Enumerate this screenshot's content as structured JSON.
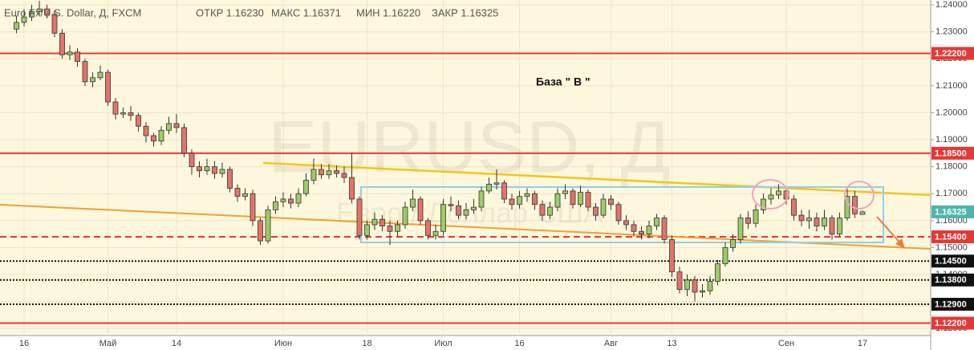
{
  "chart_data": {
    "type": "candlestick",
    "title": "Euro Fx/U.S. Dollar, Д, FXCM",
    "header": [
      "ОТКР 1.16230",
      "МАКС 1.16371",
      "МИН 1.16220",
      "ЗАКР 1.16325"
    ],
    "annotation": "База  \" В \"",
    "watermark": "EURUSD, Д",
    "watermark_subtitle": "Евро / Доллар США",
    "up_color": "#9ccc65",
    "down_color": "#e57368",
    "ylim": [
      1.1174,
      1.2418
    ],
    "yticks": [
      {
        "value": 1.24,
        "label": "1.24000"
      },
      {
        "value": 1.23,
        "label": "1.23000"
      },
      {
        "value": 1.22,
        "label": "1.22000"
      },
      {
        "value": 1.21,
        "label": "1.21000"
      },
      {
        "value": 1.2,
        "label": "1.20000"
      },
      {
        "value": 1.19,
        "label": "1.19000"
      },
      {
        "value": 1.18,
        "label": "1.18000"
      },
      {
        "value": 1.17,
        "label": "1.17000"
      },
      {
        "value": 1.16,
        "label": "1.16000"
      },
      {
        "value": 1.15,
        "label": "1.15000"
      },
      {
        "value": 1.14,
        "label": "1.14000"
      },
      {
        "value": 1.13,
        "label": "1.13000"
      },
      {
        "value": 1.12,
        "label": "1.12000"
      }
    ],
    "grid": true,
    "levels": [
      {
        "value": 1.222,
        "label": "1.22200",
        "color": "#e53935",
        "style": "solid"
      },
      {
        "value": 1.185,
        "label": "1.18500",
        "color": "#e53935",
        "style": "solid"
      },
      {
        "value": 1.154,
        "label": "1.15400",
        "color": "#e53935",
        "style": "dashed"
      },
      {
        "value": 1.145,
        "label": "1.14500",
        "color": "#111111",
        "style": "dotted"
      },
      {
        "value": 1.138,
        "label": "1.13800",
        "color": "#111111",
        "style": "dotted"
      },
      {
        "value": 1.129,
        "label": "1.12900",
        "color": "#111111",
        "style": "dotted"
      },
      {
        "value": 1.122,
        "label": "1.12200",
        "color": "#e53935",
        "style": "solid"
      }
    ],
    "last_price": {
      "value": 1.16325,
      "label": "1.16325",
      "color": "#4db6ac"
    },
    "categories": [
      null,
      "16",
      null,
      null,
      null,
      null,
      null,
      null,
      null,
      null,
      null,
      null,
      "Май",
      null,
      null,
      null,
      null,
      null,
      null,
      null,
      null,
      "14",
      null,
      null,
      null,
      null,
      null,
      null,
      null,
      null,
      null,
      null,
      null,
      null,
      null,
      "Июн",
      null,
      null,
      null,
      null,
      null,
      null,
      null,
      null,
      null,
      null,
      "18",
      null,
      null,
      null,
      null,
      null,
      null,
      null,
      null,
      null,
      "Июл",
      null,
      null,
      null,
      null,
      null,
      null,
      null,
      null,
      null,
      "16",
      null,
      null,
      null,
      null,
      null,
      null,
      null,
      null,
      null,
      null,
      null,
      "Авг",
      null,
      null,
      null,
      null,
      null,
      null,
      null,
      "13",
      null,
      null,
      null,
      null,
      null,
      null,
      null,
      null,
      null,
      null,
      null,
      null,
      null,
      null,
      "Сен",
      null,
      null,
      null,
      null,
      null,
      null,
      null,
      null,
      null,
      "17"
    ],
    "ohlc": [
      [
        1.231,
        1.236,
        1.2295,
        1.2335
      ],
      [
        1.2335,
        1.2385,
        1.232,
        1.2355
      ],
      [
        1.2355,
        1.24,
        1.234,
        1.2375
      ],
      [
        1.2375,
        1.2415,
        1.236,
        1.2385
      ],
      [
        1.2385,
        1.24,
        1.235,
        1.2365
      ],
      [
        1.2365,
        1.238,
        1.228,
        1.2295
      ],
      [
        1.2295,
        1.231,
        1.22,
        1.2215
      ],
      [
        1.2215,
        1.225,
        1.2195,
        1.2225
      ],
      [
        1.2225,
        1.224,
        1.217,
        1.219
      ],
      [
        1.219,
        1.22,
        1.21,
        1.2115
      ],
      [
        1.2115,
        1.215,
        1.2095,
        1.213
      ],
      [
        1.213,
        1.2175,
        1.212,
        1.215
      ],
      [
        1.215,
        1.216,
        1.2025,
        1.204
      ],
      [
        1.204,
        1.2055,
        1.1975,
        1.1995
      ],
      [
        1.1995,
        1.202,
        1.198,
        1.2
      ],
      [
        1.2,
        1.2025,
        1.197,
        1.199
      ],
      [
        1.199,
        1.2,
        1.193,
        1.195
      ],
      [
        1.195,
        1.1965,
        1.189,
        1.1915
      ],
      [
        1.1915,
        1.1925,
        1.1875,
        1.1895
      ],
      [
        1.1895,
        1.195,
        1.188,
        1.1935
      ],
      [
        1.1935,
        1.1985,
        1.192,
        1.196
      ],
      [
        1.196,
        1.1995,
        1.1925,
        1.1945
      ],
      [
        1.1945,
        1.196,
        1.1835,
        1.185
      ],
      [
        1.185,
        1.1865,
        1.177,
        1.18
      ],
      [
        1.18,
        1.182,
        1.176,
        1.1785
      ],
      [
        1.1785,
        1.183,
        1.177,
        1.18
      ],
      [
        1.18,
        1.182,
        1.1755,
        1.1775
      ],
      [
        1.1775,
        1.1815,
        1.176,
        1.179
      ],
      [
        1.179,
        1.18,
        1.1705,
        1.172
      ],
      [
        1.172,
        1.1735,
        1.167,
        1.169
      ],
      [
        1.169,
        1.172,
        1.1675,
        1.17
      ],
      [
        1.17,
        1.1715,
        1.158,
        1.16
      ],
      [
        1.16,
        1.161,
        1.151,
        1.1525
      ],
      [
        1.1525,
        1.1655,
        1.1515,
        1.164
      ],
      [
        1.164,
        1.169,
        1.1625,
        1.167
      ],
      [
        1.167,
        1.1705,
        1.165,
        1.168
      ],
      [
        1.168,
        1.17,
        1.1645,
        1.1665
      ],
      [
        1.1665,
        1.172,
        1.165,
        1.17
      ],
      [
        1.17,
        1.1775,
        1.169,
        1.175
      ],
      [
        1.175,
        1.183,
        1.1735,
        1.179
      ],
      [
        1.179,
        1.181,
        1.1755,
        1.177
      ],
      [
        1.177,
        1.181,
        1.1755,
        1.1785
      ],
      [
        1.1785,
        1.1805,
        1.176,
        1.1775
      ],
      [
        1.1775,
        1.18,
        1.174,
        1.176
      ],
      [
        1.176,
        1.185,
        1.1665,
        1.168
      ],
      [
        1.168,
        1.169,
        1.153,
        1.1545
      ],
      [
        1.1545,
        1.16,
        1.153,
        1.1585
      ],
      [
        1.1585,
        1.163,
        1.1565,
        1.1605
      ],
      [
        1.1605,
        1.162,
        1.156,
        1.158
      ],
      [
        1.158,
        1.16,
        1.151,
        1.156
      ],
      [
        1.156,
        1.16,
        1.154,
        1.1585
      ],
      [
        1.1585,
        1.167,
        1.157,
        1.165
      ],
      [
        1.165,
        1.1715,
        1.1635,
        1.168
      ],
      [
        1.168,
        1.169,
        1.1585,
        1.16
      ],
      [
        1.16,
        1.161,
        1.153,
        1.1545
      ],
      [
        1.1545,
        1.1585,
        1.153,
        1.156
      ],
      [
        1.156,
        1.168,
        1.1545,
        1.166
      ],
      [
        1.166,
        1.169,
        1.1635,
        1.1655
      ],
      [
        1.1655,
        1.1675,
        1.1605,
        1.162
      ],
      [
        1.162,
        1.1665,
        1.1605,
        1.164
      ],
      [
        1.164,
        1.168,
        1.1625,
        1.165
      ],
      [
        1.165,
        1.1725,
        1.1635,
        1.171
      ],
      [
        1.171,
        1.176,
        1.17,
        1.1735
      ],
      [
        1.1735,
        1.179,
        1.1715,
        1.174
      ],
      [
        1.174,
        1.175,
        1.1665,
        1.168
      ],
      [
        1.168,
        1.17,
        1.164,
        1.166
      ],
      [
        1.166,
        1.171,
        1.1645,
        1.169
      ],
      [
        1.169,
        1.172,
        1.167,
        1.17
      ],
      [
        1.17,
        1.171,
        1.164,
        1.166
      ],
      [
        1.166,
        1.1675,
        1.16,
        1.162
      ],
      [
        1.162,
        1.167,
        1.1605,
        1.165
      ],
      [
        1.165,
        1.172,
        1.1635,
        1.17
      ],
      [
        1.17,
        1.1735,
        1.168,
        1.171
      ],
      [
        1.171,
        1.172,
        1.1645,
        1.166
      ],
      [
        1.166,
        1.173,
        1.165,
        1.1705
      ],
      [
        1.1705,
        1.1715,
        1.1635,
        1.165
      ],
      [
        1.165,
        1.1665,
        1.16,
        1.162
      ],
      [
        1.162,
        1.17,
        1.161,
        1.168
      ],
      [
        1.168,
        1.1695,
        1.164,
        1.166
      ],
      [
        1.166,
        1.167,
        1.1585,
        1.16
      ],
      [
        1.16,
        1.162,
        1.1565,
        1.1585
      ],
      [
        1.1585,
        1.16,
        1.154,
        1.156
      ],
      [
        1.156,
        1.158,
        1.153,
        1.155
      ],
      [
        1.155,
        1.16,
        1.1535,
        1.158
      ],
      [
        1.158,
        1.1625,
        1.1565,
        1.161
      ],
      [
        1.161,
        1.162,
        1.1515,
        1.153
      ],
      [
        1.153,
        1.1545,
        1.139,
        1.141
      ],
      [
        1.141,
        1.143,
        1.133,
        1.1345
      ],
      [
        1.1345,
        1.14,
        1.132,
        1.138
      ],
      [
        1.138,
        1.1395,
        1.13,
        1.1335
      ],
      [
        1.1335,
        1.1365,
        1.1315,
        1.134
      ],
      [
        1.134,
        1.1395,
        1.1325,
        1.1375
      ],
      [
        1.1375,
        1.1455,
        1.136,
        1.144
      ],
      [
        1.144,
        1.152,
        1.143,
        1.15
      ],
      [
        1.15,
        1.155,
        1.1485,
        1.153
      ],
      [
        1.153,
        1.1625,
        1.1515,
        1.161
      ],
      [
        1.161,
        1.1635,
        1.157,
        1.159
      ],
      [
        1.159,
        1.166,
        1.1575,
        1.164
      ],
      [
        1.164,
        1.17,
        1.1625,
        1.168
      ],
      [
        1.168,
        1.172,
        1.166,
        1.1695
      ],
      [
        1.1695,
        1.1735,
        1.168,
        1.171
      ],
      [
        1.171,
        1.1725,
        1.166,
        1.168
      ],
      [
        1.168,
        1.1695,
        1.16,
        1.162
      ],
      [
        1.162,
        1.164,
        1.158,
        1.16
      ],
      [
        1.16,
        1.164,
        1.157,
        1.161
      ],
      [
        1.161,
        1.163,
        1.156,
        1.158
      ],
      [
        1.158,
        1.164,
        1.1565,
        1.161
      ],
      [
        1.161,
        1.162,
        1.153,
        1.155
      ],
      [
        1.155,
        1.163,
        1.154,
        1.161
      ],
      [
        1.161,
        1.172,
        1.16,
        1.169
      ],
      [
        1.169,
        1.171,
        1.161,
        1.1625
      ],
      [
        1.1623,
        1.16371,
        1.1622,
        1.16325
      ]
    ]
  }
}
